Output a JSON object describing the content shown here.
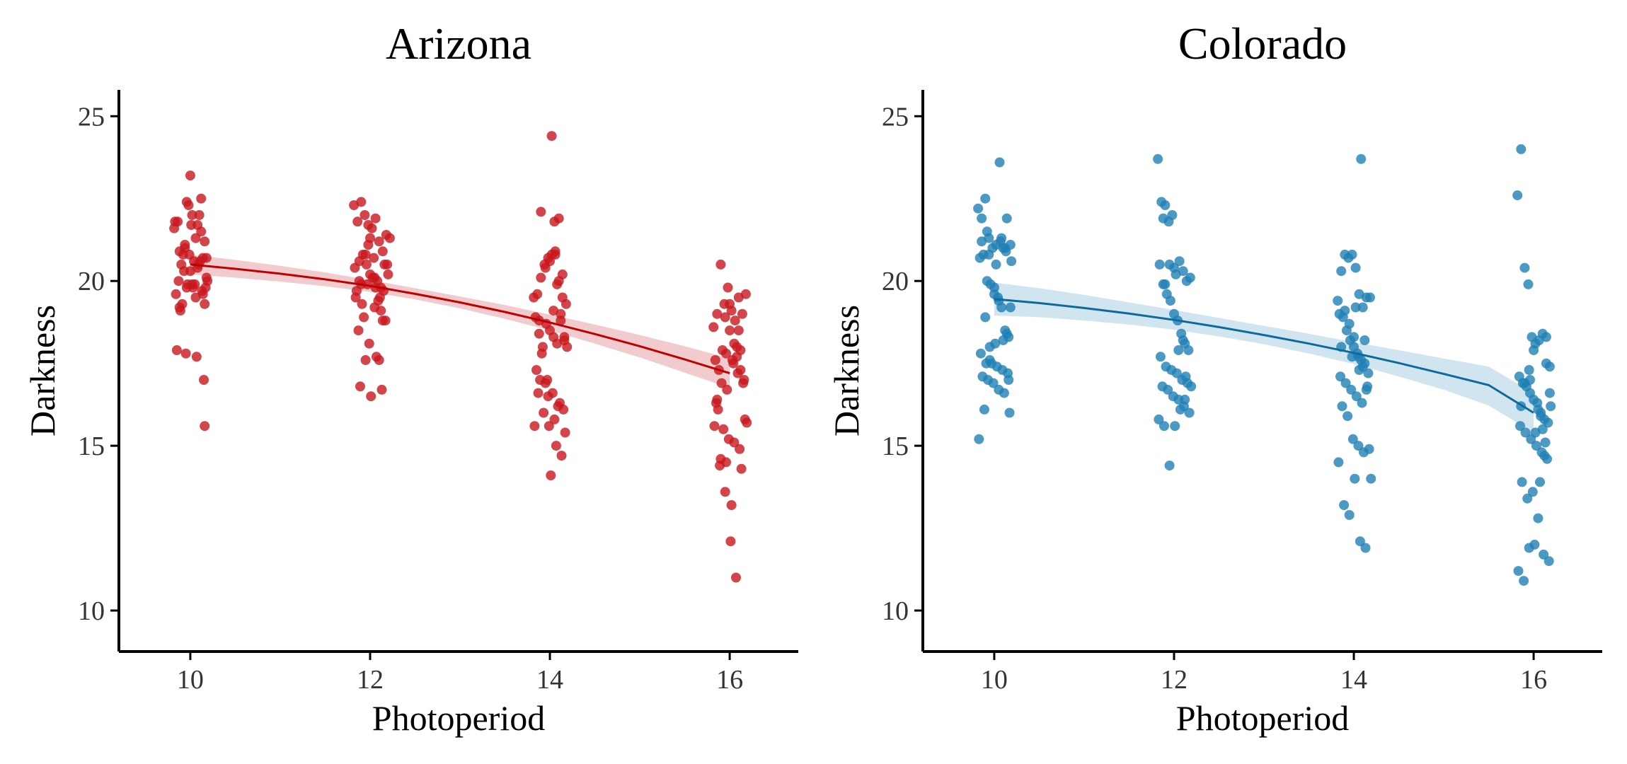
{
  "chart_data": [
    {
      "type": "scatter",
      "title": "Arizona",
      "xlabel": "Photoperiod",
      "ylabel": "Darkness",
      "xlim": [
        9.3,
        16.7
      ],
      "ylim": [
        9.4,
        25.8
      ],
      "xticks": [
        10,
        12,
        14,
        16
      ],
      "yticks": [
        10,
        15,
        20,
        25
      ],
      "x_tick_labels": [
        "10",
        "12",
        "14",
        "16"
      ],
      "y_tick_labels": [
        "10",
        "15",
        "20",
        "25"
      ],
      "grid": false,
      "point_color": "#c8161d",
      "line_color": "#c00000",
      "band_color": "#e8a9ad",
      "series": [
        {
          "x": [
            9.82,
            9.86,
            9.9,
            9.94,
            9.98,
            10.0,
            10.02,
            10.04,
            10.06,
            10.1,
            10.12,
            10.14,
            10.16,
            10.18,
            9.84,
            9.88,
            9.92,
            9.96,
            10.08,
            10.05,
            9.93,
            10.13,
            10.01,
            9.97,
            9.87,
            10.11,
            10.17,
            9.91,
            10.03,
            9.85,
            10.15,
            9.95,
            10.07,
            9.89,
            10.09,
            9.99,
            9.83,
            10.19,
            10.02,
            9.94,
            10.08,
            10.16,
            9.96,
            10.0,
            10.12,
            9.88,
            10.06,
            10.14,
            10.18,
            10.16
          ],
          "y": [
            21.6,
            21.8,
            20.5,
            21.0,
            22.3,
            23.2,
            22.0,
            20.6,
            21.3,
            22.0,
            22.5,
            20.7,
            21.2,
            20.1,
            19.6,
            19.2,
            20.8,
            19.8,
            20.4,
            19.9,
            20.3,
            19.7,
            21.7,
            19.9,
            20.0,
            20.6,
            19.8,
            19.3,
            19.8,
            17.9,
            17.0,
            17.8,
            17.7,
            19.1,
            20.5,
            20.8,
            21.8,
            20.0,
            19.9,
            21.1,
            21.7,
            19.3,
            22.4,
            20.3,
            21.5,
            20.9,
            19.5,
            19.6,
            20.7,
            15.6
          ]
        },
        {
          "x": [
            11.82,
            11.86,
            11.9,
            11.94,
            11.98,
            12.02,
            12.06,
            12.1,
            12.14,
            12.18,
            12.22,
            11.84,
            11.88,
            11.92,
            11.96,
            12.0,
            12.04,
            12.08,
            12.12,
            12.16,
            12.2,
            11.85,
            11.91,
            11.97,
            12.03,
            12.09,
            12.15,
            11.87,
            11.93,
            11.99,
            12.05,
            12.11,
            12.17,
            11.83,
            11.89,
            11.95,
            12.01,
            12.07,
            12.13,
            12.19,
            11.9,
            12.0,
            12.1,
            11.95,
            12.05,
            11.88,
            12.12,
            11.98,
            12.06,
            12.14
          ],
          "y": [
            22.3,
            21.8,
            22.4,
            22.0,
            21.7,
            21.6,
            21.9,
            21.2,
            20.9,
            21.4,
            21.3,
            19.5,
            20.0,
            20.8,
            20.5,
            20.2,
            20.7,
            20.0,
            19.8,
            20.5,
            20.2,
            19.7,
            19.3,
            19.9,
            20.1,
            19.4,
            19.7,
            18.5,
            18.9,
            18.1,
            19.2,
            19.5,
            18.8,
            20.4,
            16.8,
            17.6,
            16.5,
            17.7,
            16.7,
            20.5,
            19.9,
            21.3,
            17.6,
            20.8,
            20.1,
            20.6,
            19.1,
            21.1,
            19.8,
            18.8
          ]
        },
        {
          "x": [
            13.82,
            13.86,
            13.9,
            13.94,
            13.98,
            14.02,
            14.06,
            14.1,
            14.14,
            14.18,
            13.84,
            13.88,
            13.92,
            13.96,
            14.0,
            14.04,
            14.08,
            14.12,
            14.16,
            13.85,
            13.91,
            13.97,
            14.03,
            14.09,
            14.15,
            13.87,
            13.93,
            13.99,
            14.05,
            14.11,
            14.17,
            13.83,
            13.89,
            13.95,
            14.01,
            14.07,
            14.13,
            14.19,
            13.9,
            14.0,
            14.1,
            13.95,
            14.05,
            14.02,
            14.06,
            13.88,
            13.98,
            14.14,
            14.08,
            14.12,
            14.16,
            14.04
          ],
          "y": [
            19.5,
            19.6,
            22.1,
            20.5,
            20.7,
            20.8,
            20.9,
            20.0,
            20.2,
            19.3,
            18.9,
            18.4,
            18.0,
            18.7,
            18.5,
            18.3,
            18.1,
            19.0,
            18.3,
            17.3,
            17.8,
            17.0,
            16.6,
            16.2,
            16.1,
            16.6,
            16.0,
            15.6,
            15.8,
            16.3,
            15.4,
            15.6,
            17.0,
            16.9,
            14.1,
            15.0,
            14.7,
            18.0,
            20.1,
            20.6,
            21.9,
            20.4,
            21.8,
            24.4,
            20.8,
            18.8,
            16.5,
            19.5,
            19.9,
            18.8,
            18.2,
            19.1
          ]
        },
        {
          "x": [
            15.82,
            15.86,
            15.9,
            15.94,
            15.98,
            16.02,
            16.06,
            16.1,
            16.14,
            16.18,
            15.84,
            15.88,
            15.92,
            15.96,
            16.0,
            16.04,
            16.08,
            16.12,
            16.16,
            15.85,
            15.91,
            15.97,
            16.03,
            16.09,
            16.15,
            15.87,
            15.93,
            15.99,
            16.05,
            16.11,
            16.17,
            15.83,
            15.89,
            15.95,
            16.01,
            16.07,
            16.13,
            16.19,
            15.9,
            16.0,
            16.1,
            15.95,
            16.05,
            16.12,
            16.08,
            15.86,
            15.96,
            16.02
          ],
          "y": [
            18.6,
            19.0,
            20.5,
            19.3,
            19.8,
            19.1,
            18.8,
            19.5,
            19.0,
            19.6,
            17.6,
            17.3,
            17.9,
            17.8,
            18.5,
            17.5,
            18.0,
            17.3,
            17.0,
            16.3,
            16.9,
            16.7,
            17.6,
            17.2,
            16.9,
            16.1,
            15.5,
            15.2,
            15.1,
            14.9,
            15.8,
            15.6,
            14.4,
            13.6,
            12.1,
            11.0,
            14.3,
            15.7,
            14.6,
            19.3,
            18.5,
            18.9,
            18.1,
            17.9,
            17.7,
            16.4,
            14.5,
            13.2
          ]
        }
      ],
      "fit": {
        "x": [
          10,
          10.5,
          11,
          11.5,
          12,
          12.5,
          13,
          13.5,
          14,
          14.5,
          15,
          15.5,
          16
        ],
        "y": [
          20.5,
          20.37,
          20.22,
          20.05,
          19.85,
          19.61,
          19.35,
          19.06,
          18.74,
          18.39,
          18.02,
          17.62,
          17.2
        ],
        "lower": [
          20.2,
          20.1,
          19.98,
          19.84,
          19.67,
          19.44,
          19.17,
          18.85,
          18.5,
          18.1,
          17.68,
          17.22,
          16.75
        ],
        "upper": [
          20.8,
          20.64,
          20.46,
          20.26,
          20.03,
          19.78,
          19.53,
          19.27,
          18.98,
          18.68,
          18.36,
          18.02,
          17.65
        ]
      }
    },
    {
      "type": "scatter",
      "title": "Colorado",
      "xlabel": "Photoperiod",
      "ylabel": "Darkness",
      "xlim": [
        9.3,
        16.7
      ],
      "ylim": [
        9.4,
        25.8
      ],
      "xticks": [
        10,
        12,
        14,
        16
      ],
      "yticks": [
        10,
        15,
        20,
        25
      ],
      "x_tick_labels": [
        "10",
        "12",
        "14",
        "16"
      ],
      "y_tick_labels": [
        "10",
        "15",
        "20",
        "25"
      ],
      "grid": false,
      "point_color": "#1f7fb4",
      "line_color": "#0e6a9a",
      "band_color": "#b3d3e6",
      "series": [
        {
          "x": [
            9.82,
            9.86,
            9.9,
            9.94,
            9.98,
            10.02,
            10.06,
            10.1,
            10.14,
            10.18,
            9.84,
            9.88,
            9.92,
            9.96,
            10.0,
            10.04,
            10.08,
            10.12,
            10.16,
            9.85,
            9.91,
            9.97,
            10.03,
            10.09,
            10.15,
            9.87,
            9.93,
            9.99,
            10.05,
            10.11,
            10.17,
            9.83,
            9.89,
            9.95,
            10.01,
            10.07,
            10.13,
            10.19,
            9.9,
            10.0,
            10.1,
            9.95,
            10.05,
            10.08,
            10.12,
            9.86,
            9.92,
            10.16,
            10.14,
            10.18,
            9.94,
            10.02
          ],
          "y": [
            22.2,
            21.9,
            22.5,
            21.3,
            21.0,
            21.1,
            23.6,
            21.0,
            21.9,
            21.1,
            20.7,
            20.8,
            20.0,
            19.9,
            19.6,
            19.5,
            19.2,
            18.5,
            18.3,
            17.8,
            17.5,
            17.5,
            17.4,
            17.3,
            17.2,
            17.1,
            17.0,
            16.9,
            16.7,
            16.6,
            16.0,
            15.2,
            16.1,
            18.0,
            18.1,
            21.2,
            20.9,
            20.6,
            18.9,
            19.8,
            18.2,
            17.6,
            19.4,
            21.3,
            21.0,
            21.2,
            21.5,
            17.0,
            18.4,
            19.2,
            20.8,
            20.5
          ]
        },
        {
          "x": [
            11.82,
            11.86,
            11.9,
            11.94,
            11.98,
            12.02,
            12.06,
            12.1,
            12.14,
            12.18,
            11.84,
            11.88,
            11.92,
            11.96,
            12.0,
            12.04,
            12.08,
            12.12,
            12.16,
            11.85,
            11.91,
            11.97,
            12.03,
            12.09,
            12.15,
            11.87,
            11.93,
            11.99,
            12.05,
            12.11,
            12.17,
            11.83,
            11.89,
            11.95,
            12.01,
            12.07,
            12.13,
            12.19,
            11.9,
            12.0,
            12.1,
            11.95,
            12.05,
            11.88,
            12.12
          ],
          "y": [
            23.7,
            22.4,
            22.3,
            21.8,
            22.0,
            20.2,
            20.6,
            20.3,
            20.0,
            20.1,
            20.5,
            19.9,
            19.6,
            19.4,
            19.0,
            18.8,
            18.4,
            18.1,
            17.9,
            17.7,
            17.4,
            17.3,
            17.2,
            17.0,
            16.9,
            16.8,
            16.7,
            16.5,
            16.4,
            16.2,
            16.0,
            15.8,
            15.6,
            14.4,
            15.6,
            16.1,
            17.1,
            16.8,
            19.9,
            20.4,
            18.2,
            20.5,
            17.9,
            21.9,
            16.4
          ]
        },
        {
          "x": [
            13.82,
            13.86,
            13.9,
            13.94,
            13.98,
            14.02,
            14.06,
            14.1,
            14.14,
            14.18,
            13.84,
            13.88,
            13.92,
            13.96,
            14.0,
            14.04,
            14.08,
            14.12,
            14.16,
            13.85,
            13.91,
            13.97,
            14.03,
            14.09,
            14.15,
            13.87,
            13.93,
            13.99,
            14.05,
            14.11,
            14.17,
            13.83,
            13.89,
            13.95,
            14.01,
            14.07,
            14.13,
            14.19,
            13.9,
            14.0,
            14.1,
            13.95,
            14.05,
            14.08,
            14.12,
            13.86,
            13.98,
            14.02,
            14.06,
            14.14
          ],
          "y": [
            19.4,
            20.3,
            20.8,
            20.7,
            20.8,
            20.4,
            19.6,
            19.2,
            19.5,
            19.5,
            19.0,
            18.9,
            18.5,
            18.2,
            18.0,
            17.8,
            17.6,
            17.5,
            17.2,
            17.1,
            16.9,
            16.7,
            16.5,
            16.3,
            16.8,
            16.2,
            15.9,
            15.2,
            15.0,
            14.8,
            14.9,
            14.5,
            13.2,
            12.9,
            14.0,
            12.1,
            11.9,
            14.0,
            19.1,
            18.3,
            17.4,
            18.7,
            17.7,
            23.7,
            18.2,
            18.0,
            17.7,
            19.2,
            17.3,
            16.7
          ]
        },
        {
          "x": [
            15.82,
            15.86,
            15.9,
            15.94,
            15.98,
            16.02,
            16.06,
            16.1,
            16.14,
            16.18,
            15.84,
            15.88,
            15.92,
            15.96,
            16.0,
            16.04,
            16.08,
            16.12,
            16.16,
            15.85,
            15.91,
            15.97,
            16.03,
            16.09,
            16.15,
            15.87,
            15.93,
            15.99,
            16.05,
            16.11,
            16.17,
            15.83,
            15.89,
            15.95,
            16.01,
            16.07,
            16.13,
            16.19,
            15.9,
            16.0,
            16.1,
            15.95,
            16.05,
            16.12,
            16.08,
            15.86,
            15.96,
            16.02,
            16.14,
            16.18
          ],
          "y": [
            22.6,
            24.0,
            20.4,
            19.9,
            18.3,
            18.1,
            18.2,
            18.4,
            17.5,
            17.4,
            17.1,
            16.9,
            16.8,
            16.6,
            16.4,
            16.3,
            16.0,
            15.8,
            15.7,
            15.6,
            15.4,
            15.2,
            15.0,
            14.8,
            14.6,
            13.9,
            13.4,
            13.6,
            12.8,
            11.7,
            11.5,
            11.2,
            10.9,
            11.9,
            12.0,
            13.9,
            15.1,
            16.2,
            16.9,
            17.9,
            15.5,
            17.3,
            16.1,
            14.7,
            15.9,
            16.2,
            17.0,
            15.4,
            18.3,
            16.6
          ]
        }
      ],
      "fit": {
        "x": [
          10,
          10.5,
          11,
          11.5,
          12,
          12.5,
          13,
          13.5,
          14,
          14.5,
          15,
          15.5,
          16
        ],
        "y": [
          19.45,
          19.33,
          19.18,
          19.01,
          18.82,
          18.6,
          18.36,
          18.1,
          17.82,
          17.51,
          17.18,
          16.84,
          16.0
        ],
        "lower": [
          18.95,
          18.9,
          18.8,
          18.68,
          18.52,
          18.32,
          18.08,
          17.8,
          17.48,
          17.1,
          16.7,
          16.22,
          15.4
        ],
        "upper": [
          19.95,
          19.78,
          19.58,
          19.35,
          19.12,
          18.88,
          18.64,
          18.4,
          18.14,
          17.9,
          17.65,
          17.4,
          16.6
        ]
      }
    }
  ]
}
